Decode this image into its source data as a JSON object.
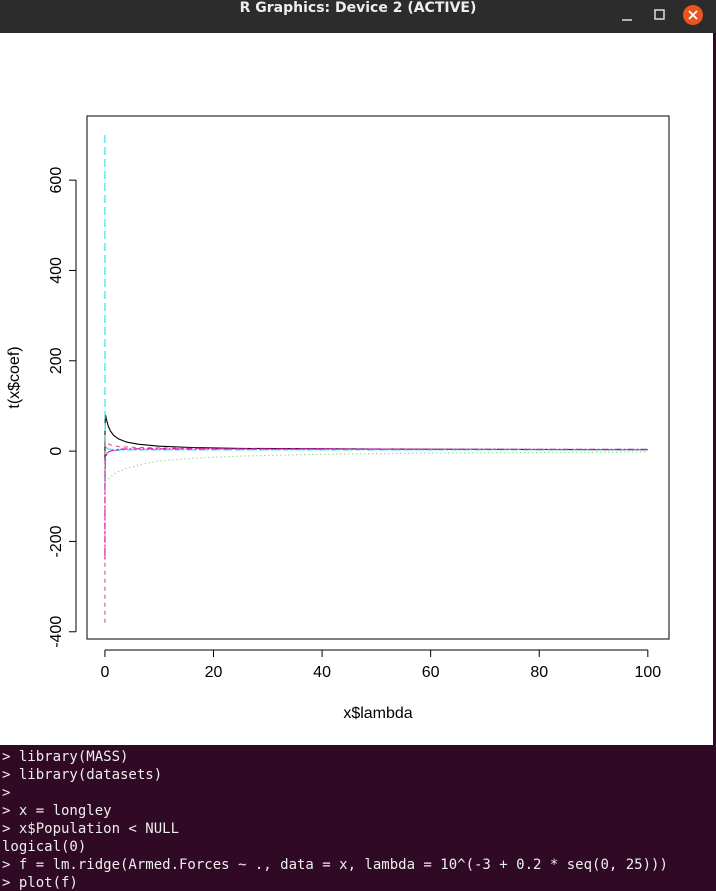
{
  "window": {
    "title": "R Graphics: Device 2 (ACTIVE)"
  },
  "chart_data": {
    "type": "line",
    "xlabel": "x$lambda",
    "ylabel": "t(x$coef)",
    "x": [
      0.001,
      0.0016,
      0.0025,
      0.004,
      0.0063,
      0.01,
      0.016,
      0.025,
      0.04,
      0.063,
      0.1,
      0.16,
      0.25,
      0.4,
      0.63,
      1,
      1.6,
      2.5,
      4,
      6.3,
      10,
      16,
      25,
      40,
      63,
      100
    ],
    "xlim": [
      -3.3,
      103.9
    ],
    "xticks": [
      0,
      20,
      40,
      60,
      80,
      100
    ],
    "ylim": [
      -416,
      742
    ],
    "yticks": [
      -400,
      -200,
      0,
      200,
      400,
      600
    ],
    "series": [
      {
        "color": "#000000",
        "dash": "none",
        "values": [
          -20,
          -15,
          -10,
          -5,
          5,
          15,
          30,
          50,
          65,
          75,
          80,
          78,
          72,
          65,
          55,
          45,
          35,
          27,
          20,
          15,
          11,
          8,
          6,
          5,
          4,
          3
        ]
      },
      {
        "color": "#df536b",
        "dash": "4,4",
        "values": [
          -380,
          -350,
          -300,
          -240,
          -170,
          -100,
          -50,
          -10,
          10,
          18,
          20,
          20,
          19,
          18,
          16,
          14,
          12,
          10,
          9,
          8,
          7,
          6,
          5,
          4,
          4,
          3
        ]
      },
      {
        "color": "#61d04f",
        "dash": "1,3",
        "values": [
          -30,
          -30,
          -32,
          -35,
          -40,
          -45,
          -52,
          -58,
          -62,
          -65,
          -66,
          -66,
          -65,
          -64,
          -62,
          -58,
          -52,
          -45,
          -38,
          -30,
          -22,
          -16,
          -11,
          -7,
          -4,
          -2
        ]
      },
      {
        "color": "#2297e6",
        "dash": "1,3,5,3",
        "values": [
          -60,
          -65,
          -70,
          -75,
          -78,
          -80,
          -78,
          -70,
          -55,
          -40,
          -28,
          -18,
          -10,
          -5,
          -2,
          0,
          1,
          2,
          3,
          3,
          3,
          3,
          3,
          3,
          3,
          3
        ]
      },
      {
        "color": "#28e2e5",
        "dash": "8,4",
        "values": [
          700,
          600,
          480,
          350,
          240,
          150,
          90,
          50,
          30,
          20,
          14,
          10,
          8,
          6,
          5,
          4,
          4,
          3,
          3,
          3,
          3,
          3,
          3,
          3,
          3,
          3
        ]
      },
      {
        "color": "#cd0bbc",
        "dash": "2,2,7,2",
        "values": [
          -240,
          -220,
          -190,
          -150,
          -110,
          -75,
          -50,
          -30,
          -20,
          -15,
          -12,
          -10,
          -8,
          -5,
          -2,
          0,
          2,
          4,
          5,
          5,
          5,
          5,
          5,
          5,
          4,
          4
        ]
      }
    ]
  },
  "terminal": {
    "lines": [
      "> library(MASS)",
      "> library(datasets)",
      ">",
      "> x = longley",
      "> x$Population < NULL",
      "logical(0)",
      "> f = lm.ridge(Armed.Forces ~ ., data = x, lambda = 10^(-3 + 0.2 * seq(0, 25)))",
      "> plot(f)"
    ]
  }
}
